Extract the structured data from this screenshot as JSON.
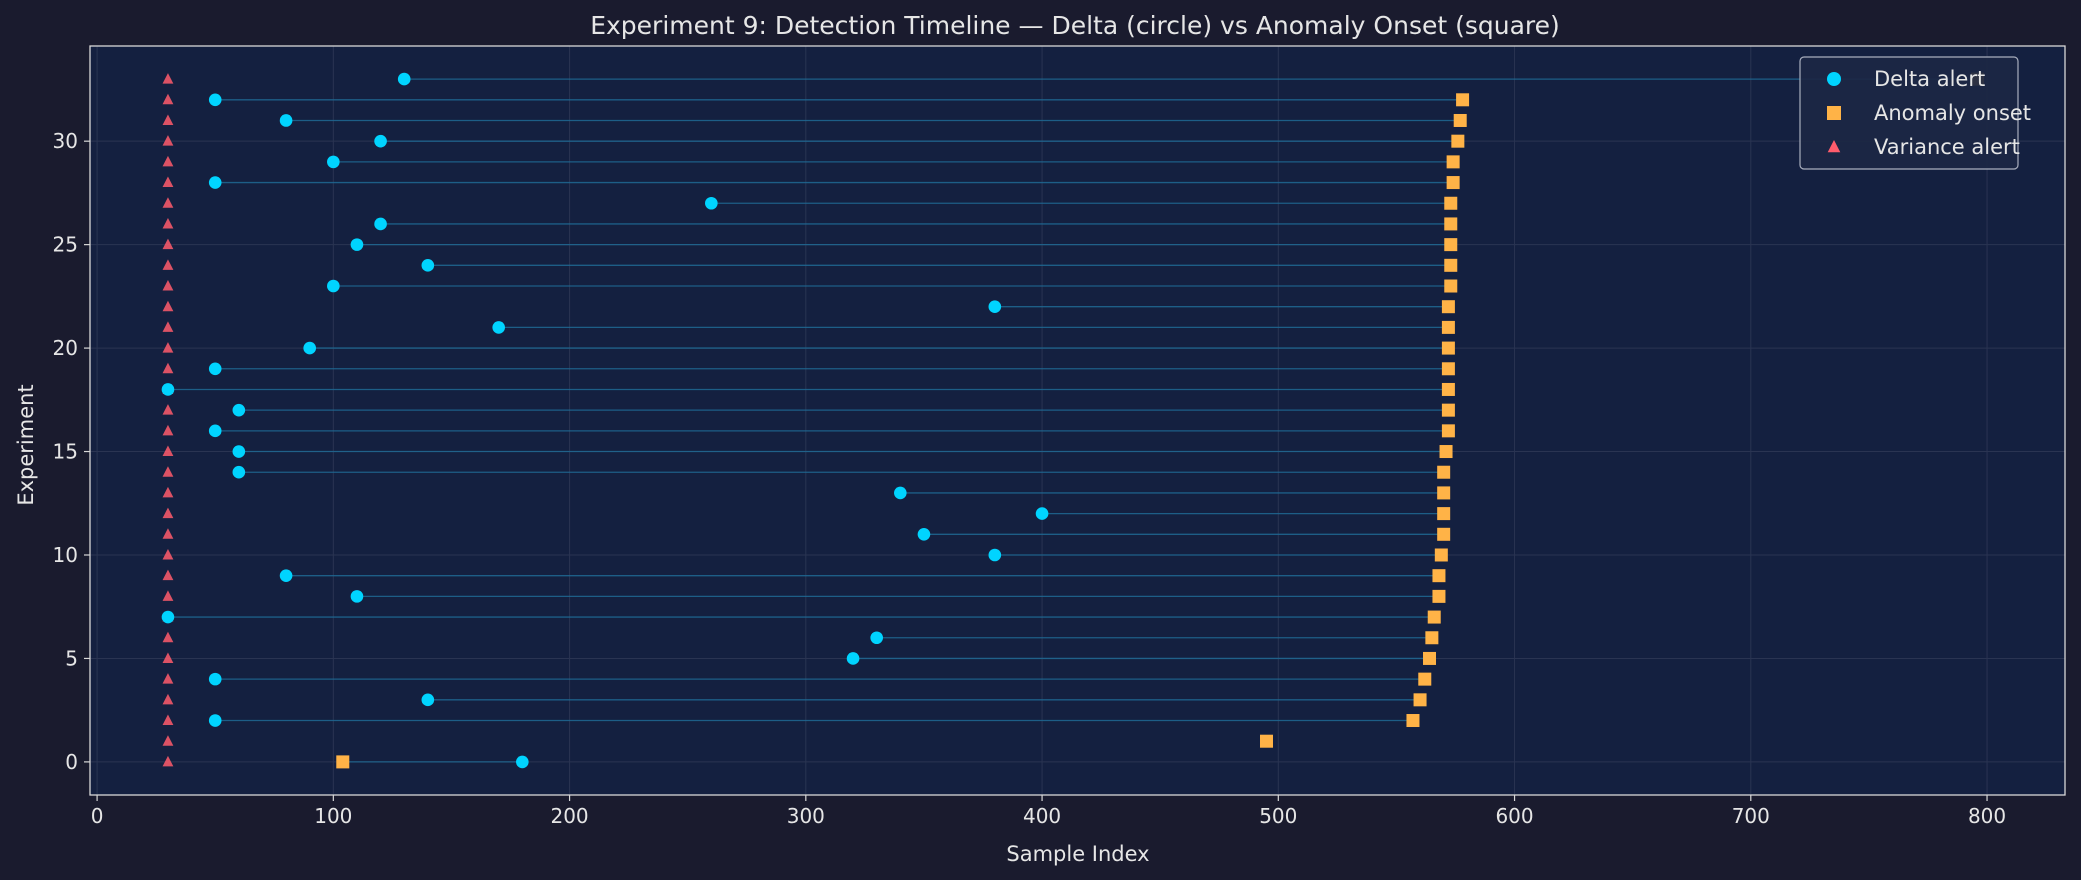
{
  "chart_data": {
    "type": "scatter",
    "title": "Experiment 9: Detection Timeline — Delta (circle) vs Anomaly Onset (square)",
    "xlabel": "Sample Index",
    "ylabel": "Experiment",
    "xlim": [
      -3,
      833
    ],
    "ylim": [
      -1.6,
      34.6
    ],
    "xticks": [
      0,
      100,
      200,
      300,
      400,
      500,
      600,
      700,
      800
    ],
    "yticks": [
      0,
      5,
      10,
      15,
      20,
      25,
      30
    ],
    "grid": true,
    "legend_position": "top-right",
    "colors": {
      "background": "#1a1b2e",
      "plot_background": "#142040",
      "delta": "#00d4ff",
      "onset": "#ffb347",
      "variance": "#ff5c6c",
      "connector": "#1e6a94",
      "grid": "#2a3452",
      "text": "#e6e6e6"
    },
    "series": [
      {
        "name": "Delta alert",
        "marker": "circle",
        "x": [
          180,
          null,
          50,
          140,
          50,
          320,
          330,
          30,
          110,
          80,
          380,
          350,
          400,
          340,
          60,
          60,
          50,
          60,
          30,
          50,
          90,
          170,
          380,
          100,
          140,
          110,
          120,
          260,
          50,
          100,
          120,
          80,
          50,
          130
        ],
        "y": [
          0,
          1,
          2,
          3,
          4,
          5,
          6,
          7,
          8,
          9,
          10,
          11,
          12,
          13,
          14,
          15,
          16,
          17,
          18,
          19,
          20,
          21,
          22,
          23,
          24,
          25,
          26,
          27,
          28,
          29,
          30,
          31,
          32,
          33
        ]
      },
      {
        "name": "Anomaly onset",
        "marker": "square",
        "x": [
          104,
          495,
          557,
          560,
          562,
          564,
          565,
          566,
          568,
          568,
          569,
          570,
          570,
          570,
          570,
          571,
          572,
          572,
          572,
          572,
          572,
          572,
          572,
          573,
          573,
          573,
          573,
          573,
          574,
          574,
          576,
          577,
          578,
          796
        ],
        "y": [
          0,
          1,
          2,
          3,
          4,
          5,
          6,
          7,
          8,
          9,
          10,
          11,
          12,
          13,
          14,
          15,
          16,
          17,
          18,
          19,
          20,
          21,
          22,
          23,
          24,
          25,
          26,
          27,
          28,
          29,
          30,
          31,
          32,
          33
        ]
      },
      {
        "name": "Variance alert",
        "marker": "triangle",
        "x": [
          30,
          30,
          30,
          30,
          30,
          30,
          30,
          30,
          30,
          30,
          30,
          30,
          30,
          30,
          30,
          30,
          30,
          30,
          30,
          30,
          30,
          30,
          30,
          30,
          30,
          30,
          30,
          30,
          30,
          30,
          30,
          30,
          30,
          30
        ],
        "y": [
          0,
          1,
          2,
          3,
          4,
          5,
          6,
          7,
          8,
          9,
          10,
          11,
          12,
          13,
          14,
          15,
          16,
          17,
          18,
          19,
          20,
          21,
          22,
          23,
          24,
          25,
          26,
          27,
          28,
          29,
          30,
          31,
          32,
          33
        ]
      }
    ]
  }
}
